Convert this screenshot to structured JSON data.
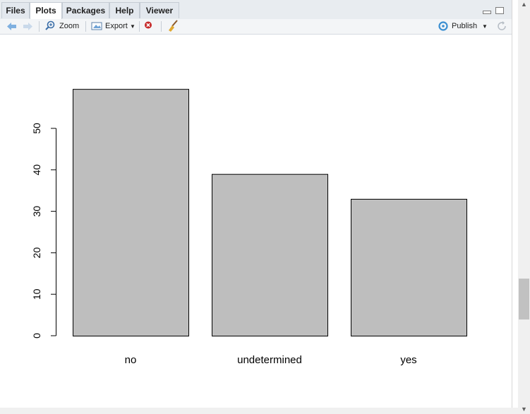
{
  "tabs": [
    {
      "label": "Files"
    },
    {
      "label": "Plots"
    },
    {
      "label": "Packages"
    },
    {
      "label": "Help"
    },
    {
      "label": "Viewer"
    }
  ],
  "active_tab": "Plots",
  "toolbar": {
    "zoom_label": "Zoom",
    "export_label": "Export",
    "publish_label": "Publish"
  },
  "icons": [
    "back-arrow-icon",
    "forward-arrow-icon",
    "zoom-icon",
    "export-icon",
    "remove-plot-icon",
    "broom-icon",
    "publish-icon",
    "refresh-icon",
    "minimize-icon",
    "maximize-icon"
  ],
  "colors": {
    "bar_fill": "#bebebe",
    "axis": "#000000",
    "tab_bg": "#e8ecf0"
  },
  "chart_data": {
    "type": "bar",
    "categories": [
      "no",
      "undetermined",
      "yes"
    ],
    "values": [
      59.5,
      39,
      33
    ],
    "yticks": [
      0,
      10,
      20,
      30,
      40,
      50
    ],
    "ylim": [
      0,
      60
    ],
    "title": "",
    "xlabel": "",
    "ylabel": ""
  }
}
